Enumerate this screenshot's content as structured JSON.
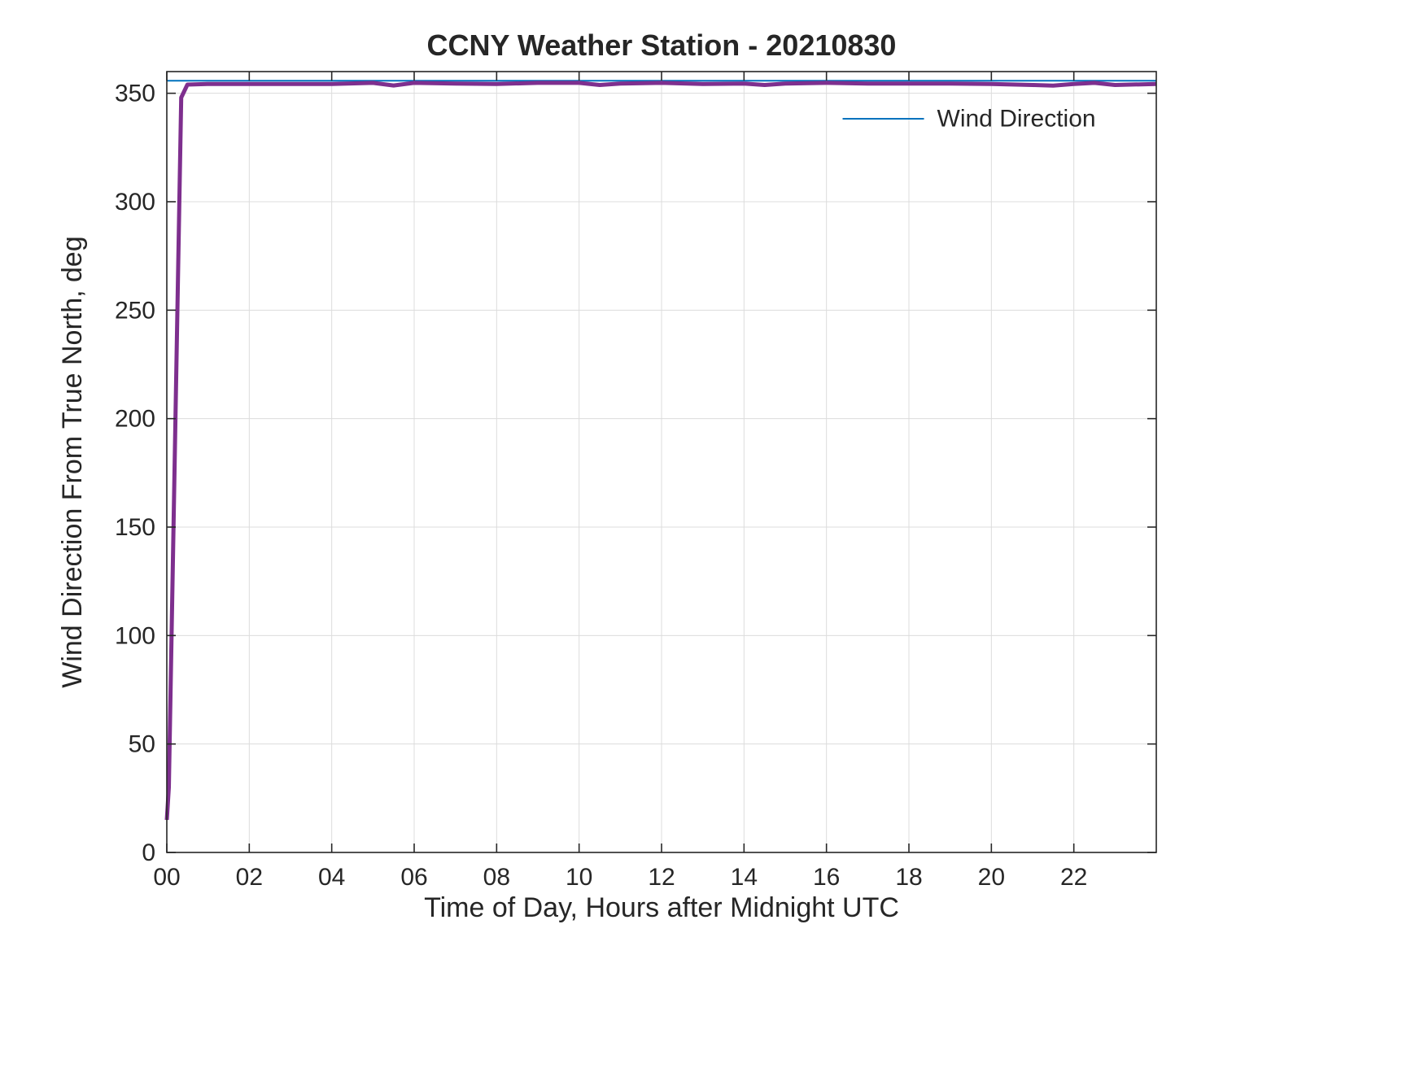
{
  "page": {
    "background_color": "#ffffff",
    "axis_color": "#262626",
    "grid_color": "#dcdcdc"
  },
  "chart_data": {
    "type": "line",
    "title": "CCNY Weather Station - 20210830",
    "xlabel": "Time of Day, Hours after Midnight UTC",
    "ylabel": "Wind Direction From True North, deg",
    "xlim": [
      0,
      24
    ],
    "ylim": [
      0,
      360
    ],
    "x_tick_values": [
      0,
      2,
      4,
      6,
      8,
      10,
      12,
      14,
      16,
      18,
      20,
      22
    ],
    "x_tick_labels": [
      "00",
      "02",
      "04",
      "06",
      "08",
      "10",
      "12",
      "14",
      "16",
      "18",
      "20",
      "22"
    ],
    "y_tick_values": [
      0,
      50,
      100,
      150,
      200,
      250,
      300,
      350
    ],
    "y_tick_labels": [
      "0",
      "50",
      "100",
      "150",
      "200",
      "250",
      "300",
      "350"
    ],
    "grid": true,
    "legend": {
      "label": "Wind Direction",
      "line_color": "#0072BD",
      "position": "top-right"
    },
    "series": [
      {
        "name": "Wind Direction",
        "color": "#0072BD",
        "width": 2,
        "points": [
          [
            0,
            355.8
          ],
          [
            24,
            355.8
          ]
        ]
      },
      {
        "name": "",
        "color": "#7E2F8E",
        "width": 5,
        "points": [
          [
            0,
            15
          ],
          [
            0.05,
            30
          ],
          [
            0.35,
            348
          ],
          [
            0.5,
            354
          ],
          [
            1,
            354.3
          ],
          [
            2,
            354.3
          ],
          [
            3,
            354.3
          ],
          [
            4,
            354.3
          ],
          [
            5,
            354.8
          ],
          [
            5.5,
            353.6
          ],
          [
            6,
            354.8
          ],
          [
            7,
            354.5
          ],
          [
            8,
            354.3
          ],
          [
            9,
            354.8
          ],
          [
            10,
            354.8
          ],
          [
            10.5,
            353.8
          ],
          [
            11,
            354.5
          ],
          [
            12,
            354.8
          ],
          [
            13,
            354.3
          ],
          [
            14,
            354.5
          ],
          [
            14.5,
            353.8
          ],
          [
            15,
            354.5
          ],
          [
            16,
            354.8
          ],
          [
            17,
            354.5
          ],
          [
            18,
            354.5
          ],
          [
            19,
            354.5
          ],
          [
            20,
            354.3
          ],
          [
            21,
            353.8
          ],
          [
            21.5,
            353.5
          ],
          [
            22,
            354.3
          ],
          [
            22.5,
            354.8
          ],
          [
            23,
            353.8
          ],
          [
            24,
            354.3
          ]
        ]
      }
    ]
  }
}
